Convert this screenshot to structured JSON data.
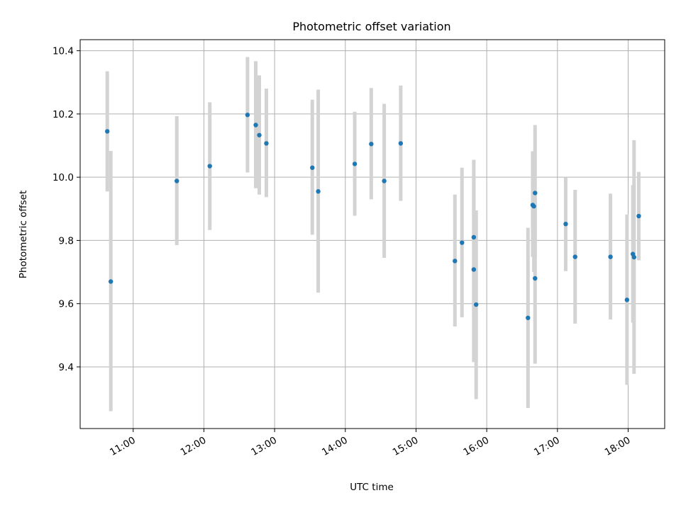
{
  "chart_data": {
    "type": "scatter",
    "title": "Photometric offset variation",
    "xlabel": "UTC time",
    "ylabel": "Photometric offset",
    "x_ticks": [
      "11:00",
      "12:00",
      "13:00",
      "14:00",
      "15:00",
      "16:00",
      "17:00",
      "18:00"
    ],
    "y_ticks": [
      "9.4",
      "9.6",
      "9.8",
      "10.0",
      "10.2",
      "10.4"
    ],
    "xlim": [
      "10:15",
      "18:31"
    ],
    "ylim": [
      9.205,
      10.435
    ],
    "grid": true,
    "series": [
      {
        "style": "points with vertical error bars",
        "colors": {
          "point": "#1f77b4",
          "errorbar": "#d3d3d3"
        },
        "points": [
          {
            "x": "10:38",
            "y": 10.145,
            "lo": 9.955,
            "hi": 10.335
          },
          {
            "x": "10:41",
            "y": 9.67,
            "lo": 9.26,
            "hi": 10.083
          },
          {
            "x": "11:37",
            "y": 9.988,
            "lo": 9.785,
            "hi": 10.193
          },
          {
            "x": "12:05",
            "y": 10.035,
            "lo": 9.833,
            "hi": 10.237
          },
          {
            "x": "12:37",
            "y": 10.197,
            "lo": 10.015,
            "hi": 10.38
          },
          {
            "x": "12:44",
            "y": 10.165,
            "lo": 9.965,
            "hi": 10.367
          },
          {
            "x": "12:47",
            "y": 10.133,
            "lo": 9.945,
            "hi": 10.322
          },
          {
            "x": "12:53",
            "y": 10.107,
            "lo": 9.937,
            "hi": 10.28
          },
          {
            "x": "13:32",
            "y": 10.03,
            "lo": 9.818,
            "hi": 10.245
          },
          {
            "x": "13:37",
            "y": 9.955,
            "lo": 9.635,
            "hi": 10.277
          },
          {
            "x": "14:08",
            "y": 10.042,
            "lo": 9.878,
            "hi": 10.207
          },
          {
            "x": "14:22",
            "y": 10.105,
            "lo": 9.93,
            "hi": 10.282
          },
          {
            "x": "14:33",
            "y": 9.988,
            "lo": 9.745,
            "hi": 10.232
          },
          {
            "x": "14:47",
            "y": 10.107,
            "lo": 9.925,
            "hi": 10.29
          },
          {
            "x": "15:33",
            "y": 9.735,
            "lo": 9.528,
            "hi": 9.945
          },
          {
            "x": "15:39",
            "y": 9.793,
            "lo": 9.557,
            "hi": 10.03
          },
          {
            "x": "15:49",
            "y": 9.81,
            "lo": 9.563,
            "hi": 10.055
          },
          {
            "x": "15:49",
            "y": 9.708,
            "lo": 9.415,
            "hi": 10.0
          },
          {
            "x": "15:51",
            "y": 9.597,
            "lo": 9.298,
            "hi": 9.895
          },
          {
            "x": "16:35",
            "y": 9.555,
            "lo": 9.27,
            "hi": 9.84
          },
          {
            "x": "16:39",
            "y": 9.912,
            "lo": 9.748,
            "hi": 10.082
          },
          {
            "x": "16:40",
            "y": 9.908,
            "lo": 9.7,
            "hi": 10.03
          },
          {
            "x": "16:41",
            "y": 9.95,
            "lo": 9.745,
            "hi": 10.165
          },
          {
            "x": "16:41",
            "y": 9.68,
            "lo": 9.41,
            "hi": 9.95
          },
          {
            "x": "17:07",
            "y": 9.852,
            "lo": 9.703,
            "hi": 10.0
          },
          {
            "x": "17:15",
            "y": 9.748,
            "lo": 9.537,
            "hi": 9.96
          },
          {
            "x": "17:45",
            "y": 9.748,
            "lo": 9.55,
            "hi": 9.948
          },
          {
            "x": "17:59",
            "y": 9.612,
            "lo": 9.343,
            "hi": 9.882
          },
          {
            "x": "18:04",
            "y": 9.757,
            "lo": 9.54,
            "hi": 9.975
          },
          {
            "x": "18:05",
            "y": 9.747,
            "lo": 9.378,
            "hi": 10.117
          },
          {
            "x": "18:09",
            "y": 9.877,
            "lo": 9.737,
            "hi": 10.017
          }
        ]
      }
    ]
  }
}
